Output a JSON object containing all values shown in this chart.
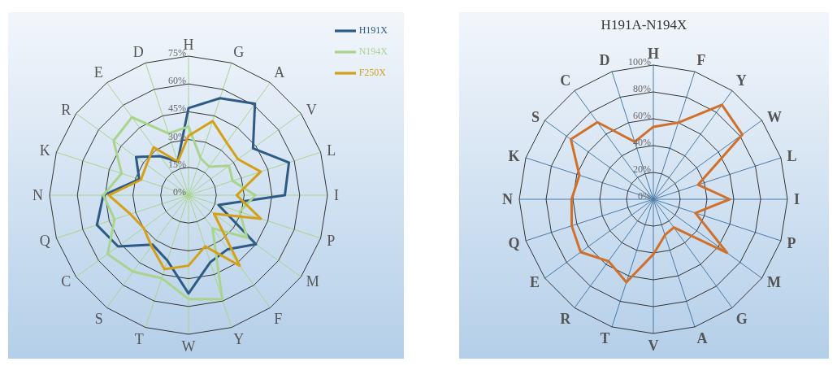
{
  "chart_data": [
    {
      "type": "radar",
      "categories": [
        "H",
        "G",
        "A",
        "V",
        "L",
        "I",
        "P",
        "M",
        "F",
        "Y",
        "W",
        "T",
        "S",
        "C",
        "Q",
        "N",
        "K",
        "R",
        "E",
        "D"
      ],
      "series": [
        {
          "name": "H191X",
          "color": "#2e5b86",
          "values": [
            47,
            55,
            61,
            43,
            57,
            52,
            17,
            45,
            36,
            38,
            53,
            37,
            33,
            47,
            52,
            46,
            28,
            35,
            26,
            19
          ]
        },
        {
          "name": "N194X",
          "color": "#a9d48c",
          "values": [
            37,
            21,
            19,
            27,
            25,
            36,
            29,
            39,
            22,
            59,
            56,
            47,
            51,
            54,
            42,
            46,
            38,
            50,
            52,
            35
          ]
        },
        {
          "name": "F250X",
          "color": "#d4a017",
          "values": [
            32,
            42,
            35,
            33,
            41,
            26,
            41,
            17,
            47,
            29,
            38,
            42,
            34,
            30,
            33,
            43,
            27,
            28,
            32,
            19
          ]
        }
      ],
      "ylim": [
        0,
        75
      ],
      "yticks": [
        {
          "value": 0,
          "label": "0%"
        },
        {
          "value": 15,
          "label": "15%"
        },
        {
          "value": 30,
          "label": "30%"
        },
        {
          "value": 45,
          "label": "45%"
        },
        {
          "value": 60,
          "label": "60%"
        },
        {
          "value": 75,
          "label": "75%"
        }
      ],
      "grid": true,
      "legend": "top right"
    },
    {
      "type": "radar",
      "title": "H191A-N194X",
      "categories": [
        "H",
        "F",
        "Y",
        "W",
        "L",
        "I",
        "P",
        "M",
        "G",
        "A",
        "V",
        "T",
        "R",
        "E",
        "Q",
        "N",
        "K",
        "S",
        "C",
        "D"
      ],
      "series": [
        {
          "color": "#d0702a",
          "values": [
            54,
            60,
            87,
            82,
            35,
            57,
            33,
            68,
            26,
            28,
            41,
            65,
            57,
            67,
            64,
            61,
            58,
            76,
            71,
            45
          ]
        }
      ],
      "ylim": [
        0,
        100
      ],
      "yticks": [
        {
          "value": 0,
          "label": "0%"
        },
        {
          "value": 20,
          "label": "20%"
        },
        {
          "value": 40,
          "label": "40%"
        },
        {
          "value": 60,
          "label": "60%"
        },
        {
          "value": 80,
          "label": "80%"
        },
        {
          "value": 100,
          "label": "100%"
        }
      ],
      "grid": true
    }
  ]
}
